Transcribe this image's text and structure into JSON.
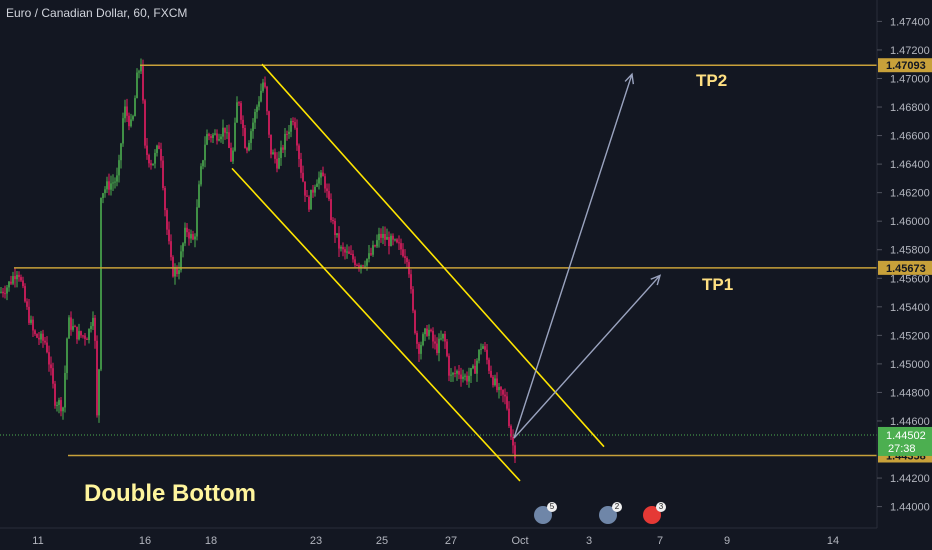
{
  "header": {
    "symbol": "Euro / Canadian Dollar, 60, FXCM"
  },
  "annotations": {
    "tp2": "TP2",
    "tp1": "TP1",
    "pattern": "Double Bottom"
  },
  "colors": {
    "bg": "#131722",
    "level": "#c8a13a",
    "channel": "#ffe600",
    "arrow": "#9aa3bf",
    "up": "#4caf50",
    "down": "#e91e63",
    "current": "#4caf50"
  },
  "events": [
    {
      "name": "globe-event-icon",
      "count": "5",
      "color": "#6f86a8"
    },
    {
      "name": "globe-event-icon",
      "count": "2",
      "color": "#6f86a8"
    },
    {
      "name": "canada-flag-event-icon",
      "count": "3",
      "color": "#e53935"
    }
  ],
  "chart_data": {
    "type": "candlestick",
    "symbol": "EURCAD",
    "timeframe": "60",
    "source": "FXCM",
    "ylim": [
      1.4385,
      1.4755
    ],
    "y_ticks": [
      "1.47400",
      "1.47200",
      "1.47000",
      "1.46800",
      "1.46600",
      "1.46400",
      "1.46200",
      "1.46000",
      "1.45800",
      "1.45600",
      "1.45400",
      "1.45200",
      "1.45000",
      "1.44800",
      "1.44600",
      "1.44200",
      "1.44000"
    ],
    "x_ticks": [
      "11",
      "16",
      "18",
      "23",
      "25",
      "27",
      "Oct",
      "3",
      "7",
      "9",
      "14"
    ],
    "levels": [
      {
        "label": "1.47093",
        "value": 1.47093
      },
      {
        "label": "1.45673",
        "value": 1.45673
      },
      {
        "label": "1.44358",
        "value": 1.44358
      }
    ],
    "current_price": {
      "label": "1.44502",
      "value": 1.44502,
      "countdown": "27:38"
    },
    "price_path": [
      [
        0,
        1.455
      ],
      [
        8,
        1.4555
      ],
      [
        18,
        1.4567
      ],
      [
        26,
        1.454
      ],
      [
        34,
        1.452
      ],
      [
        46,
        1.4515
      ],
      [
        55,
        1.4475
      ],
      [
        63,
        1.447
      ],
      [
        68,
        1.453
      ],
      [
        78,
        1.452
      ],
      [
        88,
        1.452
      ],
      [
        94,
        1.454
      ],
      [
        98,
        1.4436
      ],
      [
        101,
        1.462
      ],
      [
        108,
        1.4625
      ],
      [
        118,
        1.463
      ],
      [
        124,
        1.468
      ],
      [
        132,
        1.4665
      ],
      [
        137,
        1.47
      ],
      [
        141,
        1.4712
      ],
      [
        145,
        1.465
      ],
      [
        152,
        1.464
      ],
      [
        160,
        1.4655
      ],
      [
        166,
        1.46
      ],
      [
        172,
        1.4565
      ],
      [
        178,
        1.4565
      ],
      [
        186,
        1.4595
      ],
      [
        194,
        1.4585
      ],
      [
        200,
        1.463
      ],
      [
        206,
        1.466
      ],
      [
        215,
        1.466
      ],
      [
        225,
        1.4665
      ],
      [
        232,
        1.464
      ],
      [
        238,
        1.469
      ],
      [
        246,
        1.465
      ],
      [
        255,
        1.4675
      ],
      [
        264,
        1.47
      ],
      [
        270,
        1.465
      ],
      [
        278,
        1.464
      ],
      [
        286,
        1.466
      ],
      [
        294,
        1.4675
      ],
      [
        300,
        1.464
      ],
      [
        308,
        1.461
      ],
      [
        316,
        1.463
      ],
      [
        324,
        1.463
      ],
      [
        332,
        1.46
      ],
      [
        340,
        1.458
      ],
      [
        350,
        1.4575
      ],
      [
        360,
        1.457
      ],
      [
        370,
        1.4575
      ],
      [
        380,
        1.459
      ],
      [
        392,
        1.4585
      ],
      [
        402,
        1.458
      ],
      [
        408,
        1.4575
      ],
      [
        412,
        1.454
      ],
      [
        418,
        1.451
      ],
      [
        428,
        1.4525
      ],
      [
        436,
        1.451
      ],
      [
        444,
        1.452
      ],
      [
        450,
        1.449
      ],
      [
        458,
        1.4495
      ],
      [
        466,
        1.449
      ],
      [
        474,
        1.4495
      ],
      [
        482,
        1.4515
      ],
      [
        490,
        1.4495
      ],
      [
        498,
        1.448
      ],
      [
        506,
        1.4475
      ],
      [
        512,
        1.4445
      ],
      [
        516,
        1.4436
      ]
    ],
    "channel_upper": [
      [
        262,
        1.471
      ],
      [
        604,
        1.4442
      ]
    ],
    "channel_lower": [
      [
        232,
        1.4637
      ],
      [
        520,
        1.4418
      ]
    ],
    "projections": [
      {
        "label": "TP2",
        "from": [
          514,
          1.4448
        ],
        "to": [
          632,
          1.4703
        ]
      },
      {
        "label": "TP1",
        "from": [
          514,
          1.4448
        ],
        "to": [
          660,
          1.4562
        ]
      }
    ]
  }
}
